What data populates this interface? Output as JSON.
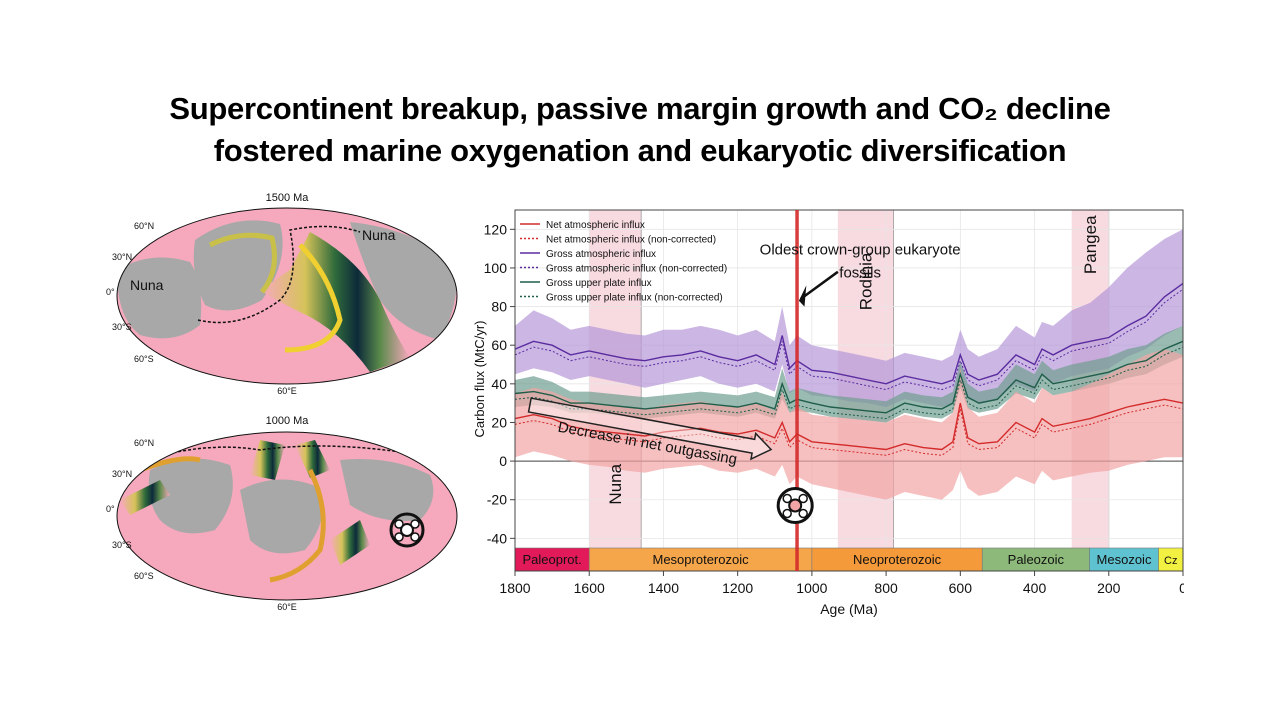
{
  "slide": {
    "title_line1": "Supercontinent breakup, passive margin growth and CO₂ decline",
    "title_line2": "fostered marine oxygenation and eukaryotic diversification"
  },
  "maps": [
    {
      "title": "1500 Ma",
      "lat_labels": [
        "60°N",
        "30°N",
        "0°",
        "30°S",
        "60°S"
      ],
      "lon_label": "60°E",
      "annotations": [
        "Nuna",
        "Nuna"
      ]
    },
    {
      "title": "1000 Ma",
      "lat_labels": [
        "60°N",
        "30°N",
        "0°",
        "30°S",
        "60°S"
      ],
      "lon_label": "60°E",
      "annotations": []
    }
  ],
  "colors": {
    "net": "#d42a2a",
    "gross_atm": "#5b2ca0",
    "gross_up": "#1f5e4a",
    "net_band": "#f2a5a5",
    "atm_band": "#b597d9",
    "up_band": "#6f9e90",
    "ocean_pink": "#f6a9bd"
  },
  "chart_data": {
    "type": "line",
    "xlabel": "Age (Ma)",
    "ylabel": "Carbon flux (MtC/yr)",
    "xlim": [
      1800,
      0
    ],
    "ylim": [
      -45,
      130
    ],
    "xticks": [
      1800,
      1600,
      1400,
      1200,
      1000,
      800,
      600,
      400,
      200,
      0
    ],
    "yticks": [
      -40,
      -20,
      0,
      20,
      40,
      60,
      80,
      100,
      120
    ],
    "legend": [
      "Net atmospheric influx",
      "Net atmospheric influx (non-corrected)",
      "Gross atmospheric influx",
      "Gross atmospheric influx (non-corrected)",
      "Gross upper plate influx",
      "Gross upper plate influx (non-corrected)"
    ],
    "x": [
      1800,
      1750,
      1700,
      1650,
      1600,
      1550,
      1500,
      1450,
      1400,
      1350,
      1300,
      1250,
      1200,
      1150,
      1100,
      1080,
      1060,
      1040,
      1000,
      950,
      900,
      850,
      800,
      750,
      700,
      650,
      620,
      600,
      580,
      550,
      500,
      450,
      400,
      380,
      350,
      300,
      250,
      200,
      150,
      100,
      50,
      0
    ],
    "series": [
      {
        "name": "Gross atmospheric influx",
        "values": [
          58,
          62,
          60,
          55,
          57,
          55,
          53,
          52,
          54,
          55,
          57,
          54,
          52,
          55,
          50,
          65,
          48,
          52,
          47,
          46,
          44,
          42,
          40,
          44,
          42,
          40,
          42,
          55,
          45,
          42,
          45,
          55,
          50,
          58,
          55,
          60,
          62,
          64,
          70,
          75,
          85,
          92
        ],
        "lower": [
          45,
          48,
          46,
          42,
          44,
          42,
          40,
          38,
          40,
          42,
          44,
          40,
          38,
          40,
          36,
          50,
          35,
          38,
          34,
          33,
          31,
          30,
          28,
          32,
          30,
          28,
          30,
          40,
          32,
          30,
          32,
          40,
          36,
          44,
          40,
          44,
          46,
          48,
          54,
          58,
          65,
          70
        ],
        "upper": [
          70,
          78,
          74,
          68,
          70,
          68,
          66,
          65,
          68,
          68,
          70,
          68,
          65,
          68,
          62,
          80,
          60,
          65,
          60,
          58,
          56,
          54,
          52,
          56,
          54,
          52,
          55,
          68,
          58,
          54,
          58,
          70,
          64,
          72,
          70,
          78,
          82,
          90,
          100,
          108,
          115,
          120
        ]
      },
      {
        "name": "Gross upper plate influx",
        "values": [
          35,
          36,
          34,
          30,
          30,
          29,
          28,
          27,
          28,
          29,
          30,
          29,
          28,
          30,
          27,
          40,
          30,
          32,
          30,
          28,
          27,
          26,
          25,
          30,
          28,
          27,
          30,
          45,
          33,
          30,
          32,
          42,
          38,
          45,
          40,
          42,
          44,
          46,
          50,
          52,
          58,
          62
        ],
        "lower": [
          28,
          29,
          28,
          25,
          25,
          24,
          23,
          22,
          23,
          24,
          25,
          24,
          23,
          25,
          22,
          32,
          25,
          26,
          25,
          23,
          22,
          21,
          20,
          25,
          23,
          22,
          25,
          38,
          27,
          25,
          27,
          35,
          32,
          38,
          34,
          36,
          38,
          40,
          43,
          45,
          50,
          54
        ],
        "upper": [
          42,
          44,
          41,
          36,
          36,
          35,
          34,
          33,
          34,
          35,
          36,
          35,
          34,
          36,
          33,
          48,
          36,
          38,
          36,
          34,
          33,
          32,
          31,
          36,
          34,
          33,
          36,
          52,
          40,
          36,
          38,
          50,
          45,
          52,
          47,
          50,
          52,
          54,
          58,
          60,
          66,
          70
        ]
      },
      {
        "name": "Net atmospheric influx",
        "values": [
          22,
          24,
          22,
          18,
          16,
          15,
          14,
          13,
          15,
          16,
          17,
          15,
          14,
          16,
          12,
          20,
          10,
          14,
          10,
          9,
          8,
          7,
          6,
          9,
          7,
          6,
          10,
          30,
          12,
          9,
          10,
          20,
          15,
          22,
          18,
          20,
          22,
          25,
          28,
          30,
          32,
          30
        ],
        "lower": [
          2,
          5,
          3,
          0,
          -2,
          -3,
          -5,
          -6,
          -4,
          -3,
          -2,
          -5,
          -6,
          -4,
          -8,
          -2,
          -12,
          -8,
          -12,
          -14,
          -16,
          -18,
          -20,
          -16,
          -18,
          -20,
          -15,
          -5,
          -14,
          -18,
          -16,
          -8,
          -12,
          -5,
          -10,
          -8,
          -6,
          -5,
          -2,
          0,
          2,
          2
        ],
        "upper": [
          35,
          38,
          36,
          32,
          30,
          29,
          28,
          27,
          29,
          30,
          31,
          29,
          28,
          30,
          26,
          36,
          25,
          28,
          24,
          23,
          22,
          21,
          20,
          24,
          22,
          20,
          25,
          48,
          28,
          23,
          25,
          36,
          30,
          38,
          34,
          36,
          40,
          45,
          50,
          55,
          58,
          55
        ]
      }
    ],
    "shaded_periods": [
      {
        "name": "Nuna",
        "from": 1600,
        "to": 1460
      },
      {
        "name": "Rodinia",
        "from": 930,
        "to": 780
      },
      {
        "name": "Pangea",
        "from": 300,
        "to": 200
      }
    ],
    "eras": [
      {
        "name": "Paleoprot.",
        "from": 1800,
        "to": 1600,
        "color": "#e31a5a"
      },
      {
        "name": "Mesoproterozoic",
        "from": 1600,
        "to": 1000,
        "color": "#f5a54a"
      },
      {
        "name": "Neoproterozoic",
        "from": 1000,
        "to": 541,
        "color": "#f59a3a"
      },
      {
        "name": "Paleozoic",
        "from": 541,
        "to": 252,
        "color": "#8dba7a"
      },
      {
        "name": "Mesozoic",
        "from": 252,
        "to": 66,
        "color": "#5fc2d0"
      },
      {
        "name": "Cz",
        "from": 66,
        "to": 0,
        "color": "#f2f040"
      }
    ],
    "annotations": {
      "fossil_age": 1040,
      "fossil_text_line1": "Oldest crown-group eukaryote",
      "fossil_text_line2": "fossils",
      "decrease_text": "Decrease in net outgassing"
    }
  }
}
